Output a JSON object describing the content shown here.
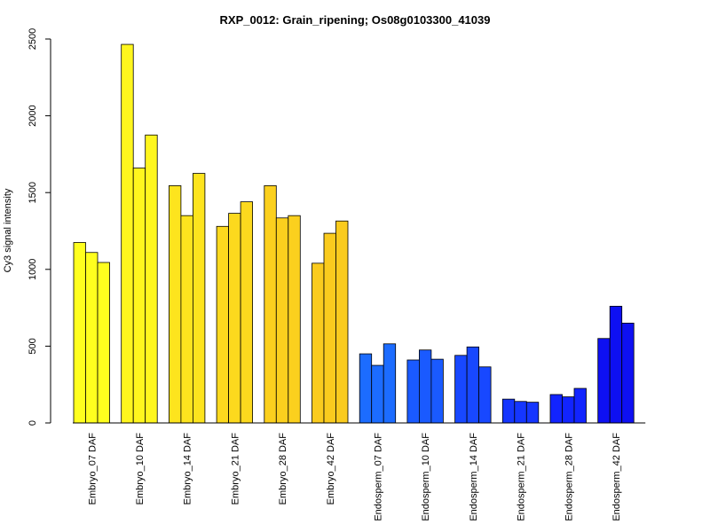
{
  "chart_data": {
    "type": "bar",
    "title": "RXP_0012: Grain_ripening; Os08g0103300_41039",
    "xlabel": "",
    "ylabel": "Cy3 signal intensity",
    "ylim": [
      0,
      2500
    ],
    "yticks": [
      0,
      500,
      1000,
      1500,
      2000,
      2500
    ],
    "grid": false,
    "legend": "none",
    "categories": [
      "Embryo_07 DAF",
      "Embryo_10 DAF",
      "Embryo_14 DAF",
      "Embryo_21 DAF",
      "Embryo_28 DAF",
      "Embryo_42 DAF",
      "Endosperm_07 DAF",
      "Endosperm_10 DAF",
      "Endosperm_14 DAF",
      "Endosperm_21 DAF",
      "Endosperm_28 DAF",
      "Endosperm_42 DAF"
    ],
    "colors": [
      "#ffff1e",
      "#fff61e",
      "#fde41e",
      "#fcd91e",
      "#fbd01e",
      "#facb1e",
      "#1c6cff",
      "#1a5aff",
      "#1848ff",
      "#1536ff",
      "#1224ff",
      "#0e10f2"
    ],
    "series": [
      {
        "values": [
          1175,
          2465,
          1545,
          1280,
          1545,
          1040,
          450,
          410,
          440,
          155,
          185,
          550
        ]
      },
      {
        "values": [
          1110,
          1660,
          1350,
          1365,
          1335,
          1235,
          375,
          475,
          495,
          140,
          170,
          760
        ]
      },
      {
        "values": [
          1045,
          1875,
          1625,
          1440,
          1350,
          1315,
          515,
          415,
          365,
          135,
          225,
          650
        ]
      }
    ]
  }
}
